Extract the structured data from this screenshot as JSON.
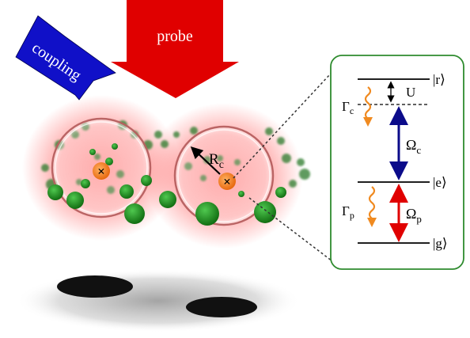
{
  "arrows": {
    "coupling_label": "coupling",
    "probe_label": "probe",
    "coupling_color": "#1010c8",
    "probe_color": "#e00000"
  },
  "atoms": {
    "radius_label": "R",
    "radius_sub": "c",
    "center_marker": "×",
    "core_color": "#f07a1a",
    "glow_color": "#ff2a2a",
    "bath_color": "#1a8a1a"
  },
  "levels": {
    "r": "|r⟩",
    "e": "|e⟩",
    "g": "|g⟩",
    "shift_label": "U",
    "omega_c": "Ω",
    "omega_c_sub": "c",
    "omega_p": "Ω",
    "omega_p_sub": "p",
    "gamma_c": "Γ",
    "gamma_c_sub": "c",
    "gamma_p": "Γ",
    "gamma_p_sub": "p",
    "coupling_transition_color": "#0b0b8a",
    "probe_transition_color": "#e00000",
    "decay_color": "#f08a20",
    "panel_border_color": "#2e8b2e"
  }
}
